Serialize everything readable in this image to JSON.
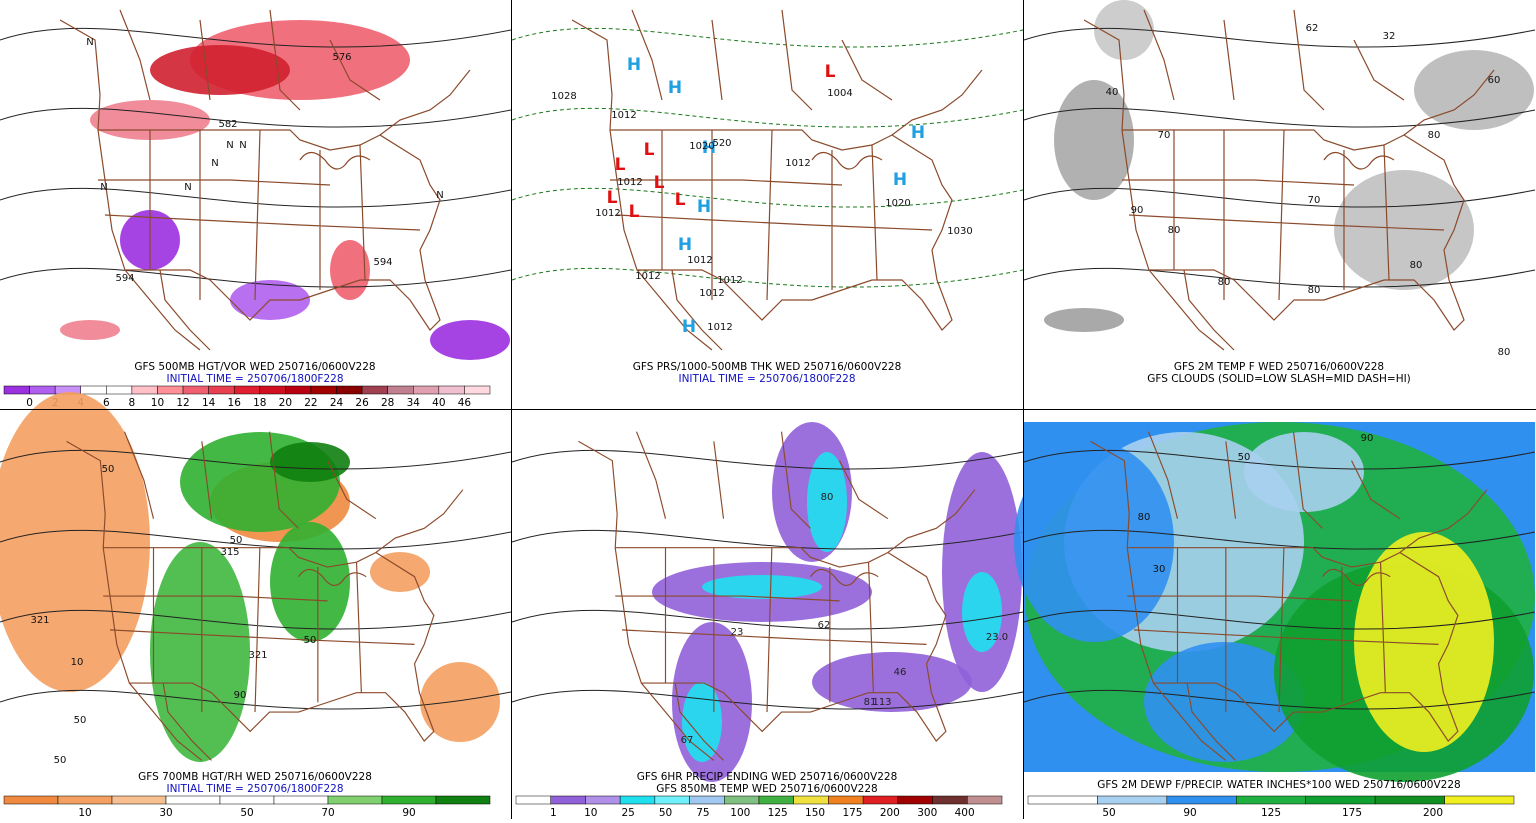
{
  "panels": [
    {
      "caption": [
        "GFS 500MB HGT/VOR WED 250716/0600V228",
        "INITIAL TIME = 250706/1800F228"
      ],
      "colorbar": {
        "colors": [
          "#9b30e0",
          "#b060f0",
          "#c890f8",
          "#ffffff",
          "#ffffff",
          "#ffc0c8",
          "#ff9098",
          "#f06070",
          "#e84050",
          "#e02030",
          "#d01020",
          "#b80010",
          "#a00000",
          "#880000",
          "#a04050",
          "#c08090",
          "#e0a0b0",
          "#f0c0d0",
          "#ffd8e0"
        ],
        "labels": [
          "0",
          "2",
          "4",
          "6",
          "8",
          "10",
          "12",
          "14",
          "16",
          "18",
          "20",
          "22",
          "24",
          "26",
          "28",
          "34",
          "40",
          "46"
        ]
      },
      "map_labels": [
        "582",
        "576",
        "594",
        "594",
        "N",
        "N",
        "N",
        "N",
        "N",
        "N",
        "N"
      ]
    },
    {
      "caption": [
        "GFS PRS/1000-500MB THK WED 250716/0600V228",
        "INITIAL TIME = 250706/1800F228"
      ],
      "colorbar": null,
      "map_labels": [
        "H",
        "H",
        "H",
        "H",
        "H",
        "H",
        "H",
        "H",
        "L",
        "L",
        "L",
        "L",
        "L",
        "L",
        "L",
        "1028",
        "1012",
        "1012",
        "1012",
        "1012",
        "1012",
        "1012",
        "1012",
        "1012",
        "1004",
        "1020",
        "1020",
        "1012",
        "1030",
        "520"
      ]
    },
    {
      "caption": [
        "GFS 2M TEMP F WED 250716/0600V228",
        "GFS CLOUDS (SOLID=LOW SLASH=MID DASH=HI)"
      ],
      "colorbar": null,
      "map_labels": [
        "40",
        "70",
        "80",
        "90",
        "80",
        "80",
        "80",
        "80",
        "70",
        "60",
        "80",
        "32",
        "62"
      ]
    },
    {
      "caption": [
        "GFS 700MB HGT/RH WED 250716/0600V228",
        "INITIAL TIME = 250706/1800F228"
      ],
      "colorbar": {
        "colors": [
          "#f08a40",
          "#f4a060",
          "#f8c090",
          "#ffffff",
          "#ffffff",
          "#ffffff",
          "#80d070",
          "#30b030",
          "#108010"
        ],
        "labels": [
          "10",
          "30",
          "50",
          "70",
          "90"
        ]
      },
      "map_labels": [
        "50",
        "321",
        "10",
        "315",
        "50",
        "50",
        "50",
        "90",
        "321",
        "50"
      ]
    },
    {
      "caption": [
        "GFS 6HR PRECIP ENDING WED 250716/0600V228",
        "GFS 850MB TEMP WED 250716/0600V228"
      ],
      "colorbar": {
        "colors": [
          "#ffffff",
          "#9060d8",
          "#b090e8",
          "#20e0f0",
          "#70f0f8",
          "#a0c8f0",
          "#80c080",
          "#40b040",
          "#f0e040",
          "#f08020",
          "#e02020",
          "#a00000",
          "#703030",
          "#c09090"
        ],
        "labels": [
          "1",
          "10",
          "25",
          "50",
          "75",
          "100",
          "125",
          "150",
          "175",
          "200",
          "300",
          "400"
        ]
      },
      "map_labels": [
        "23.0",
        "80",
        "62",
        "113",
        "81",
        "67",
        "46",
        "23"
      ]
    },
    {
      "caption": [
        "GFS 2M DEWP F/PRECIP. WATER INCHES*100 WED 250716/0600V228"
      ],
      "colorbar": {
        "colors": [
          "#ffffff",
          "#a8d0f0",
          "#3090f0",
          "#20b040",
          "#10a030",
          "#109020",
          "#f0f020"
        ],
        "labels": [
          "50",
          "90",
          "125",
          "175",
          "200"
        ]
      },
      "map_labels": [
        "30",
        "90",
        "80",
        "50"
      ]
    }
  ]
}
